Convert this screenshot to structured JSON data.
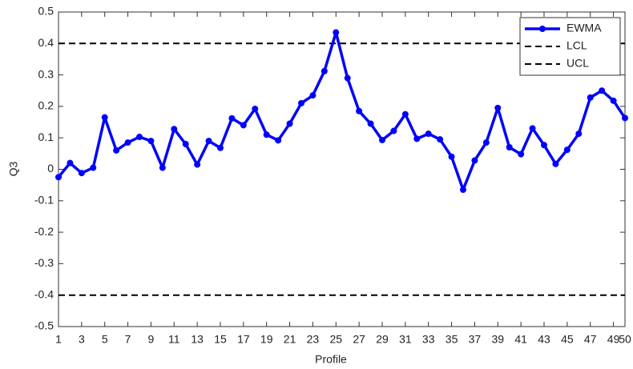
{
  "chart_data": {
    "type": "line",
    "x_label": "Profile",
    "y_label": "Q3",
    "x": [
      1,
      2,
      3,
      4,
      5,
      6,
      7,
      8,
      9,
      10,
      11,
      12,
      13,
      14,
      15,
      16,
      17,
      18,
      19,
      20,
      21,
      22,
      23,
      24,
      25,
      26,
      27,
      28,
      29,
      30,
      31,
      32,
      33,
      34,
      35,
      36,
      37,
      38,
      39,
      40,
      41,
      42,
      43,
      44,
      45,
      46,
      47,
      48,
      49,
      50
    ],
    "series": [
      {
        "name": "EWMA",
        "color": "#0000ff",
        "values": [
          -0.025,
          0.02,
          -0.012,
          0.005,
          0.165,
          0.06,
          0.085,
          0.103,
          0.09,
          0.005,
          0.128,
          0.08,
          0.015,
          0.09,
          0.068,
          0.162,
          0.14,
          0.192,
          0.11,
          0.092,
          0.145,
          0.21,
          0.235,
          0.312,
          0.435,
          0.29,
          0.185,
          0.145,
          0.093,
          0.122,
          0.175,
          0.097,
          0.113,
          0.095,
          0.04,
          -0.065,
          0.028,
          0.085,
          0.195,
          0.07,
          0.048,
          0.13,
          0.077,
          0.017,
          0.062,
          0.113,
          0.228,
          0.25,
          0.218,
          0.163
        ]
      }
    ],
    "hlines": [
      {
        "name": "LCL",
        "value": -0.4,
        "color": "#000000"
      },
      {
        "name": "UCL",
        "value": 0.4,
        "color": "#000000"
      }
    ],
    "xlim": [
      1,
      50
    ],
    "xticks": [
      1,
      3,
      5,
      7,
      9,
      11,
      13,
      15,
      17,
      19,
      21,
      23,
      25,
      27,
      29,
      31,
      33,
      35,
      37,
      39,
      41,
      43,
      45,
      47,
      49,
      50
    ],
    "ylim": [
      -0.5,
      0.5
    ],
    "yticks": [
      -0.5,
      -0.4,
      -0.3,
      -0.2,
      -0.1,
      0,
      0.1,
      0.2,
      0.3,
      0.4,
      0.5
    ],
    "legend": "upper right"
  }
}
